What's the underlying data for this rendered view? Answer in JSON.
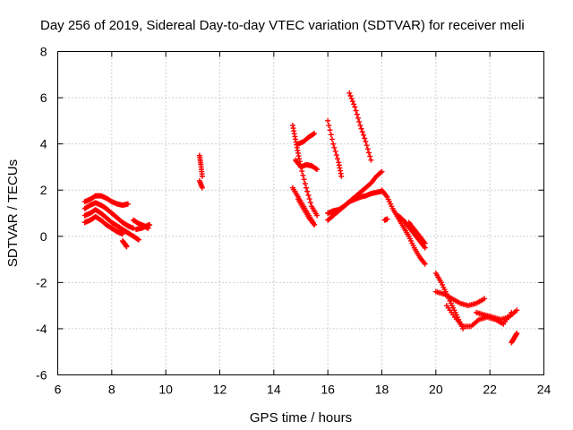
{
  "chart_data": {
    "type": "scatter",
    "title": "Day 256 of 2019, Sidereal Day-to-day VTEC variation (SDTVAR) for receiver meli",
    "xlabel": "GPS time / hours",
    "ylabel": "SDTVAR / TECUs",
    "xlim": [
      6,
      24
    ],
    "ylim": [
      -6,
      8
    ],
    "xticks": [
      "6",
      "8",
      "10",
      "12",
      "14",
      "16",
      "18",
      "20",
      "22",
      "24"
    ],
    "yticks": [
      "-6",
      "-4",
      "-2",
      "0",
      "2",
      "4",
      "6",
      "8"
    ],
    "grid": true,
    "marker": "+",
    "color": "#ff0000",
    "series": [
      {
        "name": "arc-a",
        "x": [
          7.0,
          7.2,
          7.4,
          7.6,
          7.8,
          8.0,
          8.2,
          8.4,
          8.6
        ],
        "y": [
          1.5,
          1.6,
          1.75,
          1.75,
          1.65,
          1.5,
          1.4,
          1.35,
          1.4
        ]
      },
      {
        "name": "arc-b",
        "x": [
          7.0,
          7.2,
          7.4,
          7.6,
          7.8,
          8.0,
          8.2,
          8.4,
          8.6,
          8.8
        ],
        "y": [
          1.2,
          1.35,
          1.45,
          1.35,
          1.2,
          1.0,
          0.8,
          0.6,
          0.45,
          0.35
        ]
      },
      {
        "name": "arc-c",
        "x": [
          7.0,
          7.2,
          7.4,
          7.6,
          7.8,
          8.0,
          8.2,
          8.4,
          8.6,
          8.8,
          9.0
        ],
        "y": [
          0.9,
          1.0,
          1.15,
          1.0,
          0.8,
          0.6,
          0.45,
          0.3,
          0.15,
          0.0,
          -0.15
        ]
      },
      {
        "name": "arc-d",
        "x": [
          7.0,
          7.2,
          7.4,
          7.6,
          7.8,
          8.0,
          8.2,
          8.4
        ],
        "y": [
          0.6,
          0.7,
          0.85,
          0.7,
          0.5,
          0.35,
          0.2,
          0.1
        ]
      },
      {
        "name": "arc-e",
        "x": [
          8.4,
          8.5,
          8.55
        ],
        "y": [
          -0.2,
          -0.35,
          -0.45
        ]
      },
      {
        "name": "arc-f",
        "x": [
          8.8,
          9.0,
          9.2,
          9.35
        ],
        "y": [
          0.7,
          0.55,
          0.45,
          0.35
        ]
      },
      {
        "name": "arc-g",
        "x": [
          8.9,
          9.1,
          9.3,
          9.4
        ],
        "y": [
          0.3,
          0.35,
          0.45,
          0.5
        ]
      },
      {
        "name": "arc-h",
        "x": [
          11.25,
          11.3,
          11.35
        ],
        "y": [
          3.5,
          3.1,
          2.6
        ]
      },
      {
        "name": "arc-i",
        "x": [
          11.25,
          11.35
        ],
        "y": [
          2.4,
          2.1
        ]
      },
      {
        "name": "arc-j",
        "x": [
          14.7,
          14.8,
          14.9,
          15.0,
          15.2,
          15.4,
          15.6
        ],
        "y": [
          4.8,
          4.2,
          3.6,
          3.0,
          2.1,
          1.3,
          0.9
        ]
      },
      {
        "name": "arc-k",
        "x": [
          14.8,
          15.0,
          15.2,
          15.4,
          15.6
        ],
        "y": [
          3.3,
          3.0,
          3.1,
          3.05,
          2.9
        ]
      },
      {
        "name": "arc-l",
        "x": [
          14.9,
          15.1,
          15.3,
          15.5
        ],
        "y": [
          4.0,
          4.1,
          4.3,
          4.45
        ]
      },
      {
        "name": "arc-m",
        "x": [
          14.7,
          14.9,
          15.1,
          15.3,
          15.5
        ],
        "y": [
          2.1,
          1.7,
          1.3,
          0.9,
          0.5
        ]
      },
      {
        "name": "arc-n",
        "x": [
          14.9,
          15.1,
          15.3,
          15.5
        ],
        "y": [
          1.6,
          1.2,
          0.8,
          0.5
        ]
      },
      {
        "name": "arc-o",
        "x": [
          16.0,
          16.2,
          16.4,
          16.5
        ],
        "y": [
          5.0,
          4.0,
          3.2,
          2.6
        ]
      },
      {
        "name": "arc-p",
        "x": [
          16.0,
          16.2,
          16.4,
          16.6
        ],
        "y": [
          1.0,
          1.1,
          1.15,
          1.3
        ]
      },
      {
        "name": "arc-q",
        "x": [
          16.0,
          16.2,
          16.4,
          16.6,
          16.8
        ],
        "y": [
          0.7,
          0.9,
          1.1,
          1.3,
          1.5
        ]
      },
      {
        "name": "arc-r",
        "x": [
          16.8,
          17.0,
          17.2,
          17.4,
          17.6
        ],
        "y": [
          6.2,
          5.6,
          4.8,
          4.1,
          3.3
        ]
      },
      {
        "name": "arc-s",
        "x": [
          16.6,
          16.8,
          17.0,
          17.2,
          17.4,
          17.6,
          17.8,
          18.0
        ],
        "y": [
          1.3,
          1.5,
          1.7,
          1.9,
          2.1,
          2.3,
          2.6,
          2.8
        ]
      },
      {
        "name": "arc-t",
        "x": [
          16.8,
          17.0,
          17.2,
          17.4,
          17.6,
          17.8,
          18.0
        ],
        "y": [
          1.5,
          1.6,
          1.7,
          1.75,
          1.85,
          1.9,
          1.95
        ]
      },
      {
        "name": "arc-u",
        "x": [
          18.0,
          18.2,
          18.4,
          18.6,
          18.8,
          19.0,
          19.2,
          19.4,
          19.6
        ],
        "y": [
          2.0,
          1.7,
          1.2,
          0.8,
          0.4,
          0.0,
          -0.5,
          -0.9,
          -1.2
        ]
      },
      {
        "name": "arc-v",
        "x": [
          18.6,
          18.8,
          19.0,
          19.2,
          19.4,
          19.6
        ],
        "y": [
          0.9,
          0.7,
          0.4,
          0.1,
          -0.2,
          -0.5
        ]
      },
      {
        "name": "arc-w",
        "x": [
          19.0,
          19.2,
          19.4,
          19.6
        ],
        "y": [
          0.6,
          0.3,
          0.0,
          -0.3
        ]
      },
      {
        "name": "arc-x",
        "x": [
          18.1,
          18.2
        ],
        "y": [
          0.7,
          0.75
        ]
      },
      {
        "name": "arc-y",
        "x": [
          20.0,
          20.2,
          20.4,
          20.6,
          20.8,
          21.0
        ],
        "y": [
          -1.6,
          -2.0,
          -2.5,
          -3.0,
          -3.5,
          -4.0
        ]
      },
      {
        "name": "arc-z",
        "x": [
          20.0,
          20.3,
          20.6,
          20.9,
          21.2,
          21.5,
          21.8
        ],
        "y": [
          -2.4,
          -2.5,
          -2.7,
          -2.9,
          -3.0,
          -2.9,
          -2.7
        ]
      },
      {
        "name": "arc-aa",
        "x": [
          20.4,
          20.7,
          21.0,
          21.3,
          21.6,
          21.9,
          22.2,
          22.5,
          22.8
        ],
        "y": [
          -3.0,
          -3.5,
          -3.9,
          -3.9,
          -3.6,
          -3.5,
          -3.6,
          -3.8,
          -3.3
        ]
      },
      {
        "name": "arc-ab",
        "x": [
          21.5,
          21.8,
          22.1,
          22.4,
          22.7,
          23.0
        ],
        "y": [
          -3.3,
          -3.4,
          -3.5,
          -3.6,
          -3.5,
          -3.2
        ]
      },
      {
        "name": "arc-ac",
        "x": [
          22.8,
          22.9,
          23.0
        ],
        "y": [
          -4.6,
          -4.4,
          -4.2
        ]
      }
    ]
  }
}
